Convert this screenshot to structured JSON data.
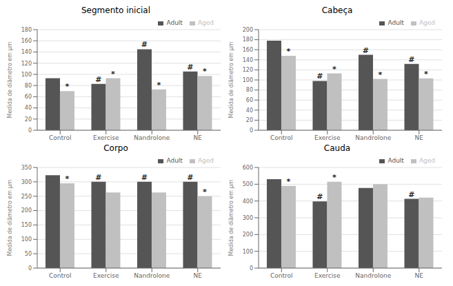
{
  "chart_data": [
    {
      "type": "bar",
      "title": "Segmento inicial",
      "ylabel": "Medida de diâmetro em μm",
      "categories": [
        "Control",
        "Exercise",
        "Nandrolone",
        "NE"
      ],
      "series": [
        {
          "name": "Adult",
          "color": "#555555",
          "values": [
            93,
            83,
            145,
            105
          ],
          "annotations": [
            null,
            "#",
            "#",
            "#"
          ]
        },
        {
          "name": "Aged",
          "color": "#c0c0c0",
          "values": [
            70,
            93,
            73,
            97
          ],
          "annotations": [
            "*",
            "*",
            "*",
            "*"
          ]
        }
      ],
      "ylim": [
        0,
        180
      ],
      "yticks": [
        0,
        20,
        40,
        60,
        80,
        100,
        120,
        140,
        160,
        180
      ],
      "grid": true,
      "legend": "upper right"
    },
    {
      "type": "bar",
      "title": "Cabeça",
      "ylabel": "Medida de diâmetro em μm",
      "categories": [
        "Control",
        "Exercise",
        "Nandrolone",
        "NE"
      ],
      "series": [
        {
          "name": "Adult",
          "color": "#555555",
          "values": [
            178,
            98,
            150,
            132
          ],
          "annotations": [
            null,
            "#",
            "#",
            "#"
          ]
        },
        {
          "name": "Aged",
          "color": "#c0c0c0",
          "values": [
            148,
            113,
            102,
            103
          ],
          "annotations": [
            "*",
            "*",
            "*",
            "*"
          ]
        }
      ],
      "ylim": [
        0,
        200
      ],
      "yticks": [
        0,
        20,
        40,
        60,
        80,
        100,
        120,
        140,
        160,
        180,
        200
      ],
      "grid": true,
      "legend": "upper right"
    },
    {
      "type": "bar",
      "title": "Corpo",
      "ylabel": "Medida de diâmetro em μm",
      "categories": [
        "Control",
        "Exercise",
        "Nandrolone",
        "NE"
      ],
      "series": [
        {
          "name": "Adult",
          "color": "#555555",
          "values": [
            323,
            300,
            300,
            300
          ],
          "annotations": [
            null,
            "#",
            "#",
            "#"
          ]
        },
        {
          "name": "Aged",
          "color": "#c0c0c0",
          "values": [
            295,
            263,
            263,
            250
          ],
          "annotations": [
            "*",
            null,
            null,
            "*"
          ]
        }
      ],
      "ylim": [
        0,
        350
      ],
      "yticks": [
        0,
        50,
        100,
        150,
        200,
        250,
        300,
        350
      ],
      "grid": true,
      "legend": "upper right"
    },
    {
      "type": "bar",
      "title": "Cauda",
      "ylabel": "Medida de diâmetro em μm",
      "categories": [
        "Control",
        "Exercise",
        "Nandrolone",
        "NE"
      ],
      "series": [
        {
          "name": "Adult",
          "color": "#555555",
          "values": [
            530,
            398,
            478,
            413
          ],
          "annotations": [
            null,
            "#",
            null,
            "#"
          ]
        },
        {
          "name": "Aged",
          "color": "#c0c0c0",
          "values": [
            490,
            515,
            500,
            420
          ],
          "annotations": [
            "*",
            "*",
            null,
            null
          ]
        }
      ],
      "ylim": [
        0,
        600
      ],
      "yticks": [
        0,
        100,
        200,
        300,
        400,
        500,
        600
      ],
      "grid": true,
      "legend": "upper right"
    }
  ]
}
